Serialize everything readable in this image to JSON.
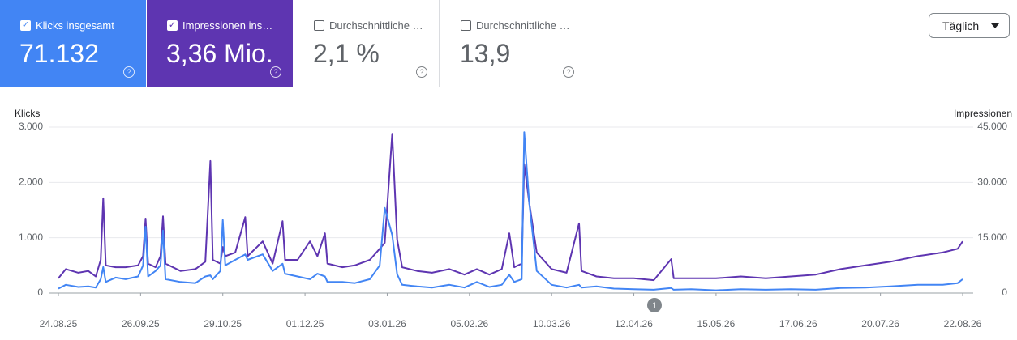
{
  "metrics": [
    {
      "label": "Klicks insgesamt",
      "value": "71.132",
      "checked": true,
      "color": "#4285f4"
    },
    {
      "label": "Impressionen ins…",
      "value": "3,36 Mio.",
      "checked": true,
      "color": "#5e35b1"
    },
    {
      "label": "Durchschnittliche …",
      "value": "2,1 %",
      "checked": false,
      "color": "#ffffff"
    },
    {
      "label": "Durchschnittliche …",
      "value": "13,9",
      "checked": false,
      "color": "#ffffff"
    }
  ],
  "period_button": "Täglich",
  "marker_label": "1",
  "chart_data": {
    "type": "line",
    "y_label": "Klicks",
    "y2_label": "Impressionen",
    "x": [
      "24.08.25",
      "27.08.25",
      "01.09.25",
      "05.09.25",
      "08.09.25",
      "10.09.25",
      "11.09.25",
      "12.09.25",
      "16.09.25",
      "20.09.25",
      "25.09.25",
      "27.09.25",
      "28.09.25",
      "29.09.25",
      "02.10.25",
      "04.10.25",
      "05.10.25",
      "06.10.25",
      "12.10.25",
      "18.10.25",
      "22.10.25",
      "24.10.25",
      "25.10.25",
      "28.10.25",
      "29.10.25",
      "30.10.25",
      "03.11.25",
      "07.11.25",
      "08.11.25",
      "14.11.25",
      "18.11.25",
      "22.11.25",
      "23.11.25",
      "28.11.25",
      "03.12.25",
      "06.12.25",
      "09.12.25",
      "10.12.25",
      "16.12.25",
      "21.12.25",
      "27.12.25",
      "31.12.25",
      "02.01.26",
      "05.01.26",
      "07.01.26",
      "09.01.26",
      "15.01.26",
      "21.01.26",
      "28.01.26",
      "03.02.26",
      "08.02.26",
      "13.02.26",
      "18.02.26",
      "21.02.26",
      "23.02.26",
      "26.02.26",
      "27.02.26",
      "01.03.26",
      "04.03.26",
      "10.03.26",
      "16.03.26",
      "21.03.26",
      "22.03.26",
      "28.03.26",
      "04.04.26",
      "12.04.26",
      "20.04.26",
      "27.04.26",
      "28.04.26",
      "05.05.26",
      "15.05.26",
      "25.05.26",
      "04.06.26",
      "14.06.26",
      "24.06.26",
      "04.07.26",
      "14.07.26",
      "24.07.26",
      "04.08.26",
      "14.08.26",
      "20.08.26",
      "22.08.26"
    ],
    "series": [
      {
        "name": "Klicks",
        "color": "#4285f4",
        "values": [
          80,
          150,
          110,
          120,
          100,
          250,
          470,
          200,
          280,
          250,
          300,
          500,
          1200,
          300,
          400,
          500,
          1130,
          250,
          200,
          180,
          300,
          320,
          250,
          400,
          1320,
          500,
          600,
          700,
          600,
          700,
          400,
          530,
          350,
          300,
          250,
          350,
          300,
          200,
          200,
          180,
          250,
          500,
          1540,
          1050,
          340,
          150,
          120,
          100,
          150,
          100,
          200,
          110,
          150,
          330,
          200,
          250,
          2910,
          1640,
          400,
          150,
          100,
          150,
          100,
          120,
          80,
          70,
          60,
          90,
          60,
          70,
          50,
          70,
          60,
          70,
          60,
          90,
          100,
          120,
          150,
          150,
          180,
          250
        ]
      },
      {
        "name": "Impressionen",
        "color": "#5e35b1",
        "axis": "y2",
        "values": [
          4000,
          6500,
          5500,
          6000,
          4500,
          9000,
          25700,
          7500,
          7000,
          7000,
          7500,
          10000,
          20200,
          8000,
          7000,
          10000,
          20800,
          8000,
          6000,
          6500,
          8500,
          35800,
          9000,
          8000,
          12500,
          10000,
          11000,
          20600,
          10000,
          14000,
          8000,
          19500,
          9000,
          9000,
          14000,
          10000,
          16200,
          8000,
          7000,
          7500,
          9000,
          12000,
          13600,
          43200,
          14500,
          7000,
          6000,
          5500,
          6500,
          5000,
          6500,
          5000,
          6500,
          16200,
          7000,
          8000,
          35000,
          24600,
          11000,
          6500,
          5500,
          18900,
          6000,
          4500,
          4000,
          4000,
          3500,
          9200,
          4000,
          4000,
          4000,
          4500,
          4000,
          4500,
          5000,
          6500,
          7500,
          8500,
          10000,
          11000,
          12000,
          14000
        ]
      }
    ],
    "xlim": [
      "24.08.25",
      "22.08.26"
    ],
    "xticks": [
      "24.08.25",
      "26.09.25",
      "29.10.25",
      "01.12.25",
      "03.01.26",
      "05.02.26",
      "10.03.26",
      "12.04.26",
      "15.05.26",
      "17.06.26",
      "20.07.26",
      "22.08.26"
    ],
    "ylim": [
      0,
      3000
    ],
    "yticks": [
      0,
      {
        "value": 1000,
        "label": "1.000"
      },
      {
        "value": 2000,
        "label": "2.000"
      },
      {
        "value": 3000,
        "label": "3.000"
      }
    ],
    "y2lim": [
      0,
      45000
    ],
    "y2ticks": [
      0,
      {
        "value": 15000,
        "label": "15.000"
      },
      {
        "value": 30000,
        "label": "30.000"
      },
      {
        "value": 45000,
        "label": "45.000"
      }
    ],
    "grid": true
  }
}
